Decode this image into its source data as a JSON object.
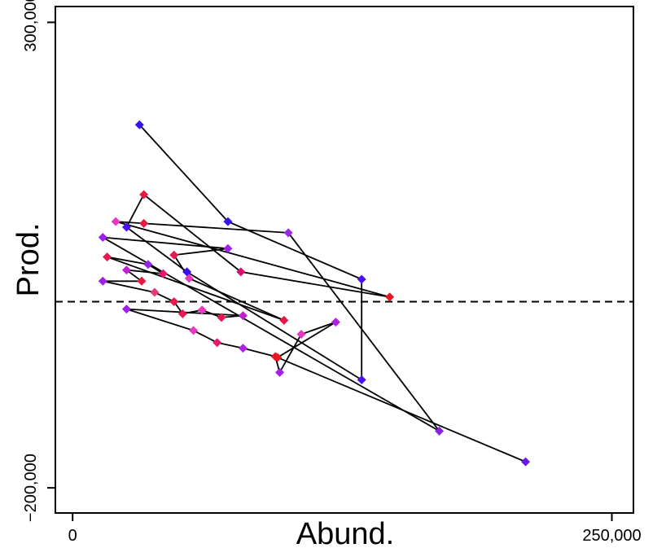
{
  "chart_data": {
    "type": "scatter",
    "title": "",
    "xlabel": "Abund.",
    "ylabel": "Prod.",
    "xlim": [
      -8000,
      260000
    ],
    "ylim": [
      -227000,
      317000
    ],
    "x_ticks": [
      0,
      250000
    ],
    "x_tick_labels": [
      "0",
      "250,000"
    ],
    "y_ticks": [
      -200000,
      300000
    ],
    "y_tick_labels": [
      "−200,000",
      "300,000"
    ],
    "reference_line": {
      "y": 0,
      "style": "dashed",
      "color": "#000000"
    },
    "grid": false,
    "legend": "none",
    "line_color": "#000000",
    "marker": "diamond",
    "points": [
      {
        "x": 31000,
        "y": 190000,
        "color": "#3b10f0"
      },
      {
        "x": 72000,
        "y": 86000,
        "color": "#3b10f0"
      },
      {
        "x": 134000,
        "y": 24000,
        "color": "#4a10ee"
      },
      {
        "x": 134000,
        "y": -84000,
        "color": "#4a10ee"
      },
      {
        "x": 53000,
        "y": 32000,
        "color": "#3b10f0"
      },
      {
        "x": 25000,
        "y": 80000,
        "color": "#4a10ee"
      },
      {
        "x": 33000,
        "y": 115000,
        "color": "#e81840"
      },
      {
        "x": 78000,
        "y": 32000,
        "color": "#d81070"
      },
      {
        "x": 147000,
        "y": 5000,
        "color": "#e81820"
      },
      {
        "x": 20000,
        "y": 86000,
        "color": "#e838c0"
      },
      {
        "x": 33000,
        "y": 84000,
        "color": "#e81840"
      },
      {
        "x": 100000,
        "y": 74000,
        "color": "#9a28e8"
      },
      {
        "x": 170000,
        "y": -139000,
        "color": "#8a20e8"
      },
      {
        "x": 14000,
        "y": 69000,
        "color": "#a020e8"
      },
      {
        "x": 72000,
        "y": 57000,
        "color": "#a020e8"
      },
      {
        "x": 47000,
        "y": 50000,
        "color": "#e81850"
      },
      {
        "x": 54000,
        "y": 25000,
        "color": "#e838c0"
      },
      {
        "x": 98000,
        "y": -20000,
        "color": "#e81840"
      },
      {
        "x": 16000,
        "y": 48000,
        "color": "#e81850"
      },
      {
        "x": 35000,
        "y": 40000,
        "color": "#9a20e8"
      },
      {
        "x": 42000,
        "y": 30000,
        "color": "#e81870"
      },
      {
        "x": 25000,
        "y": 34000,
        "color": "#c020d0"
      },
      {
        "x": 32000,
        "y": 22000,
        "color": "#e81840"
      },
      {
        "x": 14000,
        "y": 22000,
        "color": "#a020e8"
      },
      {
        "x": 38000,
        "y": 10000,
        "color": "#e83880"
      },
      {
        "x": 47000,
        "y": 0,
        "color": "#e81850"
      },
      {
        "x": 51000,
        "y": -13000,
        "color": "#e81850"
      },
      {
        "x": 60000,
        "y": -9000,
        "color": "#e838c0"
      },
      {
        "x": 69000,
        "y": -17000,
        "color": "#e81850"
      },
      {
        "x": 79000,
        "y": -15000,
        "color": "#c020d0"
      },
      {
        "x": 25000,
        "y": -8000,
        "color": "#a020e8"
      },
      {
        "x": 56000,
        "y": -31000,
        "color": "#e838c0"
      },
      {
        "x": 67000,
        "y": -44000,
        "color": "#e81870"
      },
      {
        "x": 79000,
        "y": -50000,
        "color": "#b020e0"
      },
      {
        "x": 94000,
        "y": -59000,
        "color": "#e81820"
      },
      {
        "x": 96000,
        "y": -76000,
        "color": "#a020e8"
      },
      {
        "x": 106000,
        "y": -35000,
        "color": "#e838c0"
      },
      {
        "x": 122000,
        "y": -22000,
        "color": "#b020e0"
      },
      {
        "x": 95000,
        "y": -60000,
        "color": "#e81820"
      },
      {
        "x": 210000,
        "y": -172000,
        "color": "#6a18ea"
      }
    ]
  }
}
